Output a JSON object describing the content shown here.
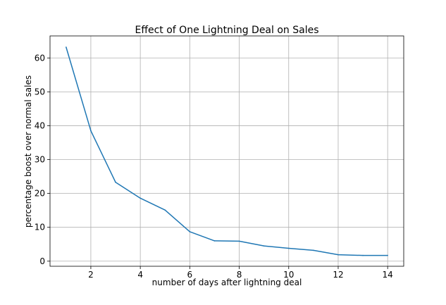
{
  "chart_data": {
    "type": "line",
    "title": "Effect of One Lightning Deal on Sales",
    "xlabel": "number of days after lightning deal",
    "ylabel": "percentage boost over normal sales",
    "xlim": [
      0.35,
      14.65
    ],
    "ylim": [
      -1.5,
      66.5
    ],
    "xticks": [
      2,
      4,
      6,
      8,
      10,
      12,
      14
    ],
    "yticks": [
      0,
      10,
      20,
      30,
      40,
      50,
      60
    ],
    "grid": true,
    "line_color": "#1f77b4",
    "grid_color": "#b0b0b0",
    "series": [
      {
        "x": [
          1,
          2,
          3,
          4,
          5,
          6,
          7,
          8,
          9,
          10,
          11,
          12,
          13,
          14
        ],
        "values": [
          63.2,
          38.5,
          23.3,
          18.6,
          15.1,
          8.7,
          6.0,
          5.9,
          4.5,
          3.8,
          3.2,
          1.9,
          1.7,
          1.7
        ]
      }
    ]
  }
}
